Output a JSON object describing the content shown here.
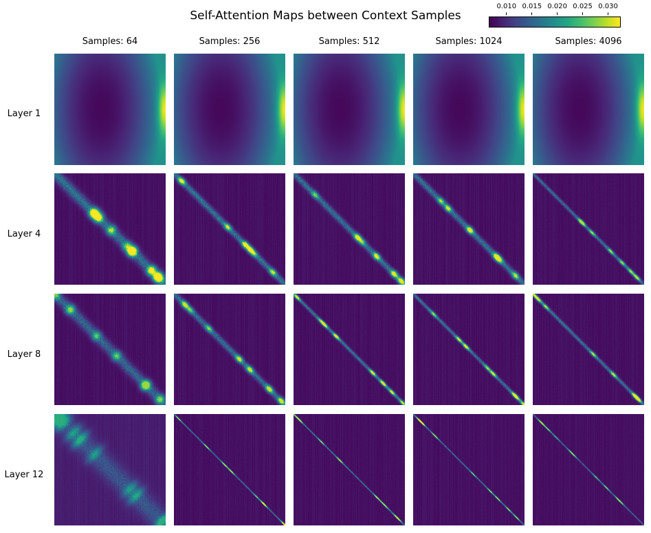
{
  "title": "Self-Attention Maps between Context Samples",
  "colorbar": {
    "colormap": "viridis",
    "min": 0.0065,
    "max": 0.0325,
    "ticks": [
      {
        "value": 0.01,
        "label": "0.010"
      },
      {
        "value": 0.015,
        "label": "0.015"
      },
      {
        "value": 0.02,
        "label": "0.020"
      },
      {
        "value": 0.025,
        "label": "0.025"
      },
      {
        "value": 0.03,
        "label": "0.030"
      }
    ]
  },
  "columns": [
    "Samples: 64",
    "Samples: 256",
    "Samples: 512",
    "Samples: 1024",
    "Samples: 4096"
  ],
  "rows": [
    "Layer 1",
    "Layer 4",
    "Layer 8",
    "Layer 12"
  ],
  "chart_data": {
    "type": "heatmap",
    "title": "Self-Attention Maps between Context Samples",
    "value_range": [
      0.0065,
      0.0325
    ],
    "colormap": "viridis",
    "grid": false,
    "legend_placement": "top-right",
    "panels": [
      {
        "row": "Layer 1",
        "column": "Samples: 64",
        "pattern": "smooth",
        "min_value": 0.007,
        "max_value": 0.032,
        "minimum_location": "center-left",
        "maximum_location": "right edge, middle"
      },
      {
        "row": "Layer 1",
        "column": "Samples: 256",
        "pattern": "smooth",
        "min_value": 0.007,
        "max_value": 0.032,
        "minimum_location": "center-left",
        "maximum_location": "right edge, middle"
      },
      {
        "row": "Layer 1",
        "column": "Samples: 512",
        "pattern": "smooth",
        "min_value": 0.007,
        "max_value": 0.032,
        "minimum_location": "center-left",
        "maximum_location": "right edge, middle"
      },
      {
        "row": "Layer 1",
        "column": "Samples: 1024",
        "pattern": "smooth",
        "min_value": 0.007,
        "max_value": 0.032,
        "minimum_location": "center-left",
        "maximum_location": "right edge, middle"
      },
      {
        "row": "Layer 1",
        "column": "Samples: 4096",
        "pattern": "smooth",
        "min_value": 0.007,
        "max_value": 0.032,
        "minimum_location": "center-left",
        "maximum_location": "right edge, middle"
      },
      {
        "row": "Layer 4",
        "column": "Samples: 64",
        "pattern": "diagonal",
        "background": 0.007,
        "diagonal_peak": 0.032,
        "band": "wide"
      },
      {
        "row": "Layer 4",
        "column": "Samples: 256",
        "pattern": "diagonal",
        "background": 0.007,
        "diagonal_peak": 0.032,
        "band": "medium"
      },
      {
        "row": "Layer 4",
        "column": "Samples: 512",
        "pattern": "diagonal",
        "background": 0.007,
        "diagonal_peak": 0.031,
        "band": "medium"
      },
      {
        "row": "Layer 4",
        "column": "Samples: 1024",
        "pattern": "diagonal",
        "background": 0.007,
        "diagonal_peak": 0.031,
        "band": "medium"
      },
      {
        "row": "Layer 4",
        "column": "Samples: 4096",
        "pattern": "diagonal",
        "background": 0.007,
        "diagonal_peak": 0.029,
        "band": "narrow"
      },
      {
        "row": "Layer 8",
        "column": "Samples: 64",
        "pattern": "diagonal",
        "background": 0.007,
        "diagonal_peak": 0.028,
        "band": "wide"
      },
      {
        "row": "Layer 8",
        "column": "Samples: 256",
        "pattern": "diagonal",
        "background": 0.007,
        "diagonal_peak": 0.03,
        "band": "medium"
      },
      {
        "row": "Layer 8",
        "column": "Samples: 512",
        "pattern": "diagonal",
        "background": 0.007,
        "diagonal_peak": 0.031,
        "band": "narrow"
      },
      {
        "row": "Layer 8",
        "column": "Samples: 1024",
        "pattern": "diagonal",
        "background": 0.007,
        "diagonal_peak": 0.031,
        "band": "narrow"
      },
      {
        "row": "Layer 8",
        "column": "Samples: 4096",
        "pattern": "diagonal",
        "background": 0.007,
        "diagonal_peak": 0.031,
        "band": "narrow"
      },
      {
        "row": "Layer 12",
        "column": "Samples: 64",
        "pattern": "diagonal",
        "background": 0.008,
        "diagonal_peak": 0.022,
        "band": "very wide"
      },
      {
        "row": "Layer 12",
        "column": "Samples: 256",
        "pattern": "diagonal",
        "background": 0.007,
        "diagonal_peak": 0.031,
        "band": "thin"
      },
      {
        "row": "Layer 12",
        "column": "Samples: 512",
        "pattern": "diagonal",
        "background": 0.007,
        "diagonal_peak": 0.032,
        "band": "thin"
      },
      {
        "row": "Layer 12",
        "column": "Samples: 1024",
        "pattern": "diagonal",
        "background": 0.007,
        "diagonal_peak": 0.031,
        "band": "thin"
      },
      {
        "row": "Layer 12",
        "column": "Samples: 4096",
        "pattern": "diagonal",
        "background": 0.007,
        "diagonal_peak": 0.029,
        "band": "thin"
      }
    ]
  }
}
